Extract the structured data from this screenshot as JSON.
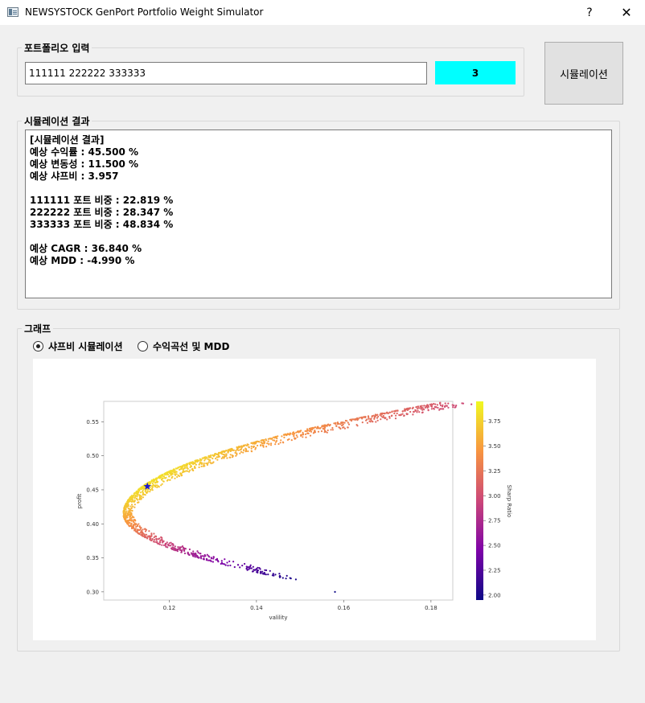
{
  "window": {
    "title": "NEWSYSTOCK GenPort Portfolio Weight Simulator",
    "help_label": "?",
    "close_label": "✕"
  },
  "portfolio": {
    "group_title": "포트폴리오 입력",
    "input_value": "111111 222222 333333",
    "count": "3",
    "count_color": "#00ffff",
    "simulate_label": "시뮬레이션"
  },
  "result": {
    "group_title": "시뮬레이션 결과",
    "header": "[시뮬레이션 결과]",
    "expected_return": "예상 수익률 : 45.500 %",
    "expected_volatility": "예상 변동성 : 11.500 %",
    "expected_sharpe": "예상 샤프비 : 3.957",
    "weights": [
      "111111 포트 비중 : 22.819 %",
      "222222 포트 비중 : 28.347 %",
      "333333 포트 비중 : 48.834 %"
    ],
    "expected_cagr": "예상 CAGR : 36.840 %",
    "expected_mdd": "예상 MDD : -4.990 %"
  },
  "graph": {
    "group_title": "그래프",
    "radio_options": [
      "샤프비 시뮬레이션",
      "수익곡선 및 MDD"
    ],
    "selected_option": 0
  },
  "chart_data": {
    "type": "scatter",
    "xlabel": "valility",
    "ylabel": "profit",
    "colorbar_label": "Sharp Ratio",
    "colormap": "plasma",
    "xlim": [
      0.105,
      0.185
    ],
    "ylim": [
      0.288,
      0.58
    ],
    "xticks": [
      0.12,
      0.14,
      0.16,
      0.18
    ],
    "xtick_labels": [
      "0.12",
      "0.14",
      "0.16",
      "0.18"
    ],
    "yticks": [
      0.3,
      0.35,
      0.4,
      0.45,
      0.5,
      0.55
    ],
    "ytick_labels": [
      "0.30",
      "0.35",
      "0.40",
      "0.45",
      "0.50",
      "0.55"
    ],
    "colorbar_range": [
      1.95,
      3.95
    ],
    "colorbar_ticks": [
      2.0,
      2.25,
      2.5,
      2.75,
      3.0,
      3.25,
      3.5,
      3.75
    ],
    "colorbar_tick_labels": [
      "2.00",
      "2.25",
      "2.50",
      "2.75",
      "3.00",
      "3.25",
      "3.50",
      "3.75"
    ],
    "frontier": {
      "min_volatility": 0.1095,
      "return_at_min_volatility": 0.415,
      "upper_end": [
        0.182,
        0.578
      ],
      "lower_end": [
        0.148,
        0.318
      ]
    },
    "outlier": [
      0.158,
      0.3
    ],
    "optimal_point": {
      "x": 0.115,
      "y": 0.455,
      "marker": "star",
      "color": "#1a1acc"
    },
    "point_count": 1500
  }
}
